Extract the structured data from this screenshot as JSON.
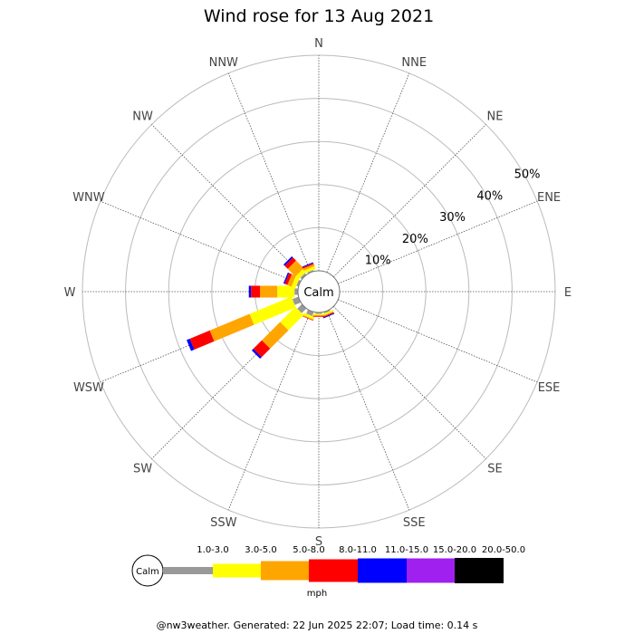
{
  "chart_data": {
    "type": "wind-rose",
    "title": "Wind rose for 13 Aug 2021",
    "directions": [
      "N",
      "NNE",
      "NE",
      "ENE",
      "E",
      "ESE",
      "SE",
      "SSE",
      "S",
      "SSW",
      "SW",
      "WSW",
      "W",
      "WNW",
      "NW",
      "NNW"
    ],
    "ring_labels": [
      "10%",
      "20%",
      "30%",
      "40%",
      "50%"
    ],
    "ring_values": [
      10,
      20,
      30,
      40,
      50
    ],
    "max_percent": 50,
    "calm_label": "Calm",
    "unit_label": "mph",
    "speed_bins": [
      {
        "label": "",
        "color": "#999999"
      },
      {
        "label": "1.0-3.0",
        "color": "#ffff00"
      },
      {
        "label": "3.0-5.0",
        "color": "#ffa500"
      },
      {
        "label": "5.0-8.0",
        "color": "#ff0000"
      },
      {
        "label": "8.0-11.0",
        "color": "#0000ff"
      },
      {
        "label": "11.0-15.0",
        "color": "#a020f0"
      },
      {
        "label": "15.0-20.0",
        "color": "#000000"
      },
      {
        "label": "20.0-50.0",
        "color": ""
      }
    ],
    "series": [
      {
        "direction": "ESE",
        "values": [
          0.0,
          0.0,
          0.0,
          0.0,
          0.0,
          0.0,
          0.0
        ]
      },
      {
        "direction": "SE",
        "values": [
          0.0,
          0.0,
          0.0,
          0.0,
          0.0,
          0.0,
          0.0
        ]
      },
      {
        "direction": "SSE",
        "values": [
          0.3,
          0.4,
          0.2,
          0.2,
          0.2,
          0.0,
          0.0
        ]
      },
      {
        "direction": "S",
        "values": [
          0.3,
          0.3,
          0.2,
          0.2,
          0.0,
          0.0,
          0.0
        ]
      },
      {
        "direction": "SSW",
        "values": [
          1.0,
          0.6,
          0.2,
          0.1,
          0.0,
          0.0,
          0.0
        ]
      },
      {
        "direction": "SW",
        "values": [
          1.5,
          5.0,
          6.0,
          2.8,
          0.5,
          0.0,
          0.0
        ]
      },
      {
        "direction": "WSW",
        "values": [
          1.5,
          10.5,
          10.0,
          5.0,
          0.8,
          0.0,
          0.0
        ]
      },
      {
        "direction": "W",
        "values": [
          0.8,
          4.0,
          4.0,
          2.1,
          0.5,
          0.0,
          0.0
        ]
      },
      {
        "direction": "WNW",
        "values": [
          0.5,
          1.0,
          1.0,
          0.7,
          0.3,
          0.0,
          0.0
        ]
      },
      {
        "direction": "NW",
        "values": [
          0.5,
          1.0,
          2.5,
          1.0,
          0.4,
          0.0,
          0.0
        ]
      },
      {
        "direction": "NNW",
        "values": [
          0.3,
          0.7,
          0.5,
          0.3,
          0.2,
          0.0,
          0.0
        ]
      }
    ]
  },
  "legend": {
    "calm_label": "Calm",
    "labels": [
      "1.0-3.0",
      "3.0-5.0",
      "5.0-8.0",
      "8.0-11.0",
      "11.0-15.0",
      "15.0-20.0",
      "20.0-50.0"
    ],
    "colors": [
      "#999999",
      "#ffff00",
      "#ffa500",
      "#ff0000",
      "#0000ff",
      "#a020f0",
      "#000000"
    ],
    "unit": "mph"
  },
  "footer": "@nw3weather. Generated: 22 Jun 2025 22:07; Load time: 0.14 s"
}
